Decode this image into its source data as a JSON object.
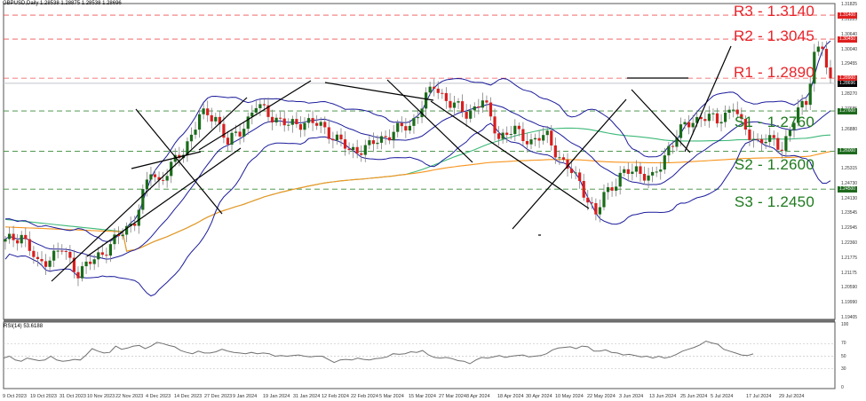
{
  "header": {
    "symbol_title": "GBPUSD,Daily  1.28538 1.28875 1.28538 1.28696"
  },
  "rsi_panel": {
    "title": "RSI(14) 53.6188",
    "axis_labels": [
      "100",
      "70",
      "50",
      "30",
      "0"
    ]
  },
  "levels": [
    {
      "id": "R3",
      "label": "R3 - 1.3140",
      "price": 1.314,
      "type": "resistance",
      "tag": "1.31400"
    },
    {
      "id": "R2",
      "label": "R2 - 1.3045",
      "price": 1.3045,
      "type": "resistance",
      "tag": "1.30450"
    },
    {
      "id": "R1",
      "label": "R1 - 1.2890",
      "price": 1.289,
      "type": "resistance",
      "tag": "1.28900"
    },
    {
      "id": "S1",
      "label": "S1 - 1.2760",
      "price": 1.276,
      "type": "support",
      "tag": "1.27600"
    },
    {
      "id": "S2",
      "label": "S2 - 1.2600",
      "price": 1.26,
      "type": "support",
      "tag": "1.26000"
    },
    {
      "id": "S3",
      "label": "S3 - 1.2450",
      "price": 1.245,
      "type": "support",
      "tag": "1.24500"
    }
  ],
  "current_price_tag": "1.28696",
  "price_axis_labels": [
    "1.31825",
    "1.31225",
    "1.30640",
    "1.30040",
    "1.29455",
    "1.28270",
    "1.27685",
    "1.26880",
    "1.25915",
    "1.25315",
    "1.24730",
    "1.24130",
    "1.23545",
    "1.22945",
    "1.22360",
    "1.21775",
    "1.21175",
    "1.20590",
    "1.19990",
    "1.19405"
  ],
  "date_labels": [
    "9 Oct 2023",
    "19 Oct 2023",
    "31 Oct 2023",
    "10 Nov 2023",
    "22 Nov 2023",
    "4 Dec 2023",
    "14 Dec 2023",
    "27 Dec 2023",
    "9 Jan 2024",
    "19 Jan 2024",
    "31 Jan 2024",
    "12 Feb 2024",
    "22 Feb 2024",
    "5 Mar 2024",
    "15 Mar 2024",
    "27 Mar 2024",
    "8 Apr 2024",
    "18 Apr 2024",
    "30 Apr 2024",
    "10 May 2024",
    "22 May 2024",
    "3 Jun 2024",
    "13 Jun 2024",
    "25 Jun 2024",
    "5 Jul 2024",
    "17 Jul 2024",
    "29 Jul 2024"
  ],
  "colors": {
    "bull_candle": "#1a6b1a",
    "bear_candle": "#d81e1e",
    "wick": "#808080",
    "bollinger": "#1c1c9c",
    "ma_green": "#3cb878",
    "ma_orange": "#f7941d",
    "resistance": "#f05050",
    "support": "#3a8a3a",
    "trendline": "#000000",
    "rsi_line": "#707070"
  },
  "chart_data": [
    {
      "type": "candlestick",
      "title": "GBPUSD,Daily",
      "ohlc_header": {
        "open": 1.28538,
        "high": 1.28875,
        "low": 1.28538,
        "close": 1.28696
      },
      "x_tick_labels": [
        "9 Oct 2023",
        "19 Oct 2023",
        "31 Oct 2023",
        "10 Nov 2023",
        "22 Nov 2023",
        "4 Dec 2023",
        "14 Dec 2023",
        "27 Dec 2023",
        "9 Jan 2024",
        "19 Jan 2024",
        "31 Jan 2024",
        "12 Feb 2024",
        "22 Feb 2024",
        "5 Mar 2024",
        "15 Mar 2024",
        "27 Mar 2024",
        "8 Apr 2024",
        "18 Apr 2024",
        "30 Apr 2024",
        "10 May 2024",
        "22 May 2024",
        "3 Jun 2024",
        "13 Jun 2024",
        "25 Jun 2024",
        "5 Jul 2024",
        "17 Jul 2024",
        "29 Jul 2024"
      ],
      "ylim": [
        1.19405,
        1.31825
      ],
      "horizontal_levels": [
        {
          "name": "R3",
          "value": 1.314
        },
        {
          "name": "R2",
          "value": 1.3045
        },
        {
          "name": "R1",
          "value": 1.289
        },
        {
          "name": "S1",
          "value": 1.276
        },
        {
          "name": "S2",
          "value": 1.26
        },
        {
          "name": "S3",
          "value": 1.245
        }
      ],
      "indicators": [
        "Bollinger Bands (20)",
        "Moving Average (green, ~100)",
        "Moving Average (orange, ~200)"
      ],
      "approx_closes": [
        {
          "date": "9 Oct 2023",
          "close": 1.224
        },
        {
          "date": "19 Oct 2023",
          "close": 1.216
        },
        {
          "date": "31 Oct 2023",
          "close": 1.215
        },
        {
          "date": "10 Nov 2023",
          "close": 1.224
        },
        {
          "date": "22 Nov 2023",
          "close": 1.253
        },
        {
          "date": "4 Dec 2023",
          "close": 1.264
        },
        {
          "date": "14 Dec 2023",
          "close": 1.274
        },
        {
          "date": "27 Dec 2023",
          "close": 1.272
        },
        {
          "date": "9 Jan 2024",
          "close": 1.274
        },
        {
          "date": "19 Jan 2024",
          "close": 1.27
        },
        {
          "date": "31 Jan 2024",
          "close": 1.27
        },
        {
          "date": "12 Feb 2024",
          "close": 1.262
        },
        {
          "date": "22 Feb 2024",
          "close": 1.268
        },
        {
          "date": "5 Mar 2024",
          "close": 1.278
        },
        {
          "date": "15 Mar 2024",
          "close": 1.274
        },
        {
          "date": "27 Mar 2024",
          "close": 1.263
        },
        {
          "date": "8 Apr 2024",
          "close": 1.263
        },
        {
          "date": "18 Apr 2024",
          "close": 1.244
        },
        {
          "date": "30 Apr 2024",
          "close": 1.25
        },
        {
          "date": "10 May 2024",
          "close": 1.252
        },
        {
          "date": "22 May 2024",
          "close": 1.271
        },
        {
          "date": "3 Jun 2024",
          "close": 1.275
        },
        {
          "date": "13 Jun 2024",
          "close": 1.276
        },
        {
          "date": "25 Jun 2024",
          "close": 1.268
        },
        {
          "date": "5 Jul 2024",
          "close": 1.281
        },
        {
          "date": "17 Jul 2024",
          "close": 1.299
        },
        {
          "date": "29 Jul 2024",
          "close": 1.287
        }
      ]
    },
    {
      "type": "line",
      "title": "RSI(14) 53.6188",
      "ylim": [
        0,
        100
      ],
      "reference_lines": [
        70,
        50,
        30
      ],
      "y_tick_labels": [
        "100",
        "70",
        "50",
        "30",
        "0"
      ],
      "last_value": 53.6188,
      "values": [
        47,
        50,
        44,
        42,
        47,
        45,
        43,
        44,
        50,
        44,
        42,
        43,
        45,
        44,
        52,
        62,
        58,
        55,
        56,
        66,
        61,
        63,
        66,
        67,
        62,
        66,
        72,
        70,
        67,
        65,
        59,
        56,
        54,
        58,
        55,
        55,
        57,
        61,
        58,
        56,
        55,
        54,
        56,
        54,
        55,
        54,
        50,
        51,
        50,
        51,
        52,
        50,
        49,
        50,
        50,
        45,
        40,
        44,
        45,
        44,
        47,
        45,
        44,
        46,
        47,
        49,
        54,
        53,
        54,
        57,
        56,
        59,
        52,
        48,
        47,
        48,
        46,
        43,
        42,
        38,
        44,
        48,
        47,
        49,
        51,
        48,
        50,
        51,
        52,
        49,
        50,
        51,
        54,
        60,
        63,
        64,
        65,
        62,
        66,
        65,
        58,
        58,
        60,
        56,
        55,
        52,
        53,
        51,
        49,
        50,
        47,
        50,
        47,
        49,
        53,
        58,
        61,
        64,
        68,
        74,
        71,
        69,
        61,
        58,
        55,
        52,
        51,
        53.6
      ]
    }
  ]
}
